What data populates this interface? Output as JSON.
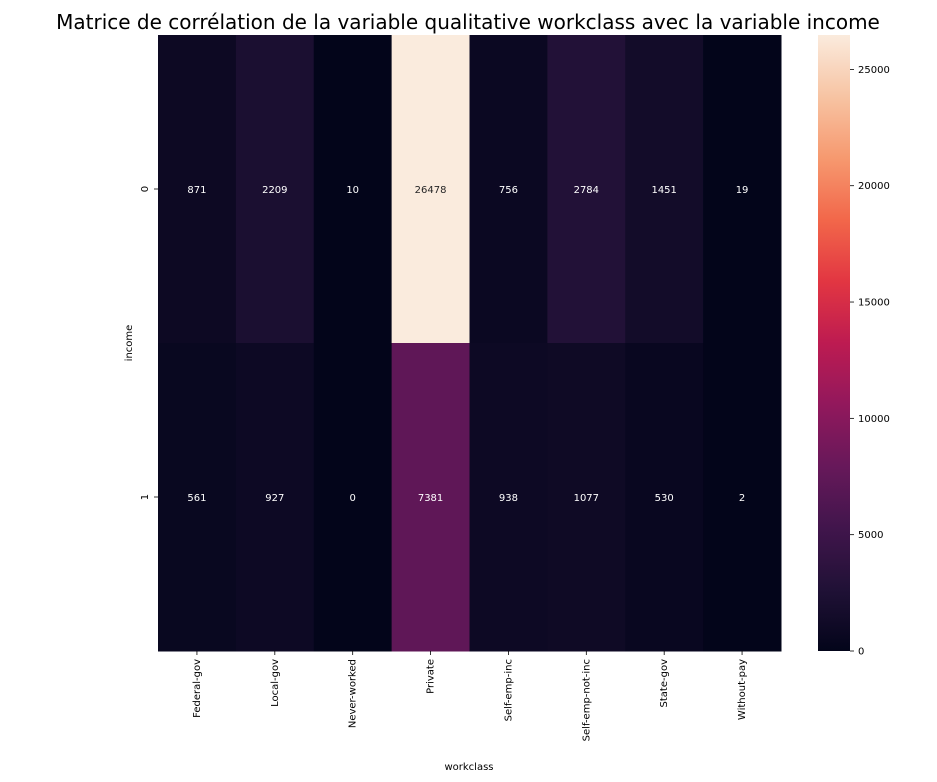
{
  "chart_data": {
    "type": "heatmap",
    "title": "Matrice de corrélation de la variable qualitative workclass avec la variable income",
    "xlabel": "workclass",
    "ylabel": "income",
    "x_categories": [
      "Federal-gov",
      "Local-gov",
      "Never-worked",
      "Private",
      "Self-emp-inc",
      "Self-emp-not-inc",
      "State-gov",
      "Without-pay"
    ],
    "y_categories": [
      "0",
      "1"
    ],
    "values": [
      [
        871,
        2209,
        10,
        26478,
        756,
        2784,
        1451,
        19
      ],
      [
        561,
        927,
        0,
        7381,
        938,
        1077,
        530,
        2
      ]
    ],
    "colorbar": {
      "min": 0,
      "max": 26478,
      "ticks": [
        0,
        5000,
        10000,
        15000,
        20000,
        25000
      ],
      "colormap": "rocket"
    },
    "grid": false,
    "legend": "colorbar-right"
  }
}
